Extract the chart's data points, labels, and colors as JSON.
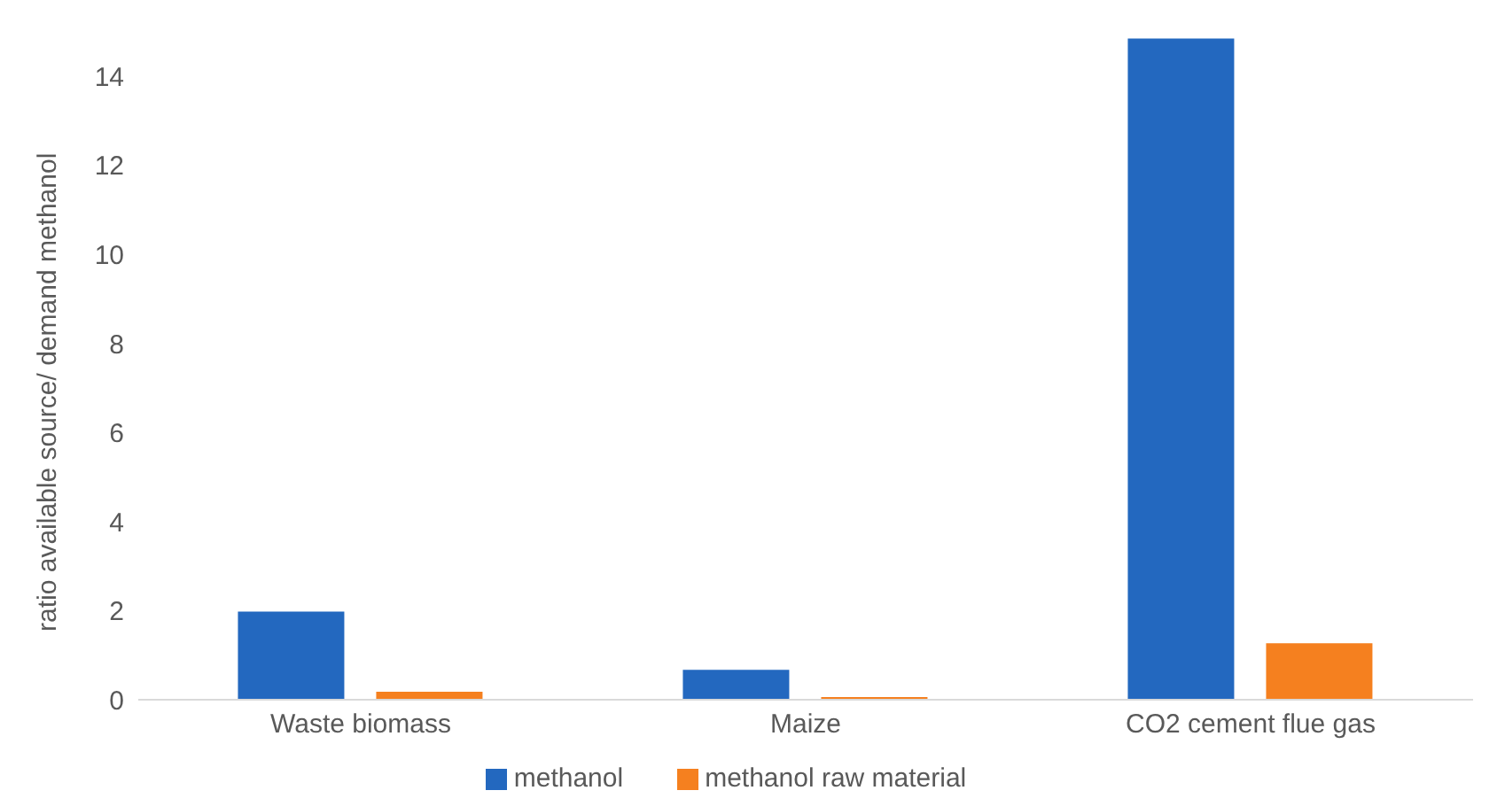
{
  "chart_data": {
    "type": "bar",
    "ylabel": "ratio available source/ demand methanol",
    "categories": [
      "Waste biomass",
      "Maize",
      "CO2 cement flue gas"
    ],
    "series": [
      {
        "name": "methanol",
        "color": "#2368bf",
        "values": [
          1.98,
          0.67,
          14.85
        ]
      },
      {
        "name": "methanol raw material",
        "color": "#f5801f",
        "values": [
          0.18,
          0.06,
          1.27
        ]
      }
    ],
    "ylim": [
      0,
      15
    ],
    "yticks": [
      0,
      2,
      4,
      6,
      8,
      10,
      12,
      14
    ],
    "grid": false,
    "legend": "bottom"
  }
}
